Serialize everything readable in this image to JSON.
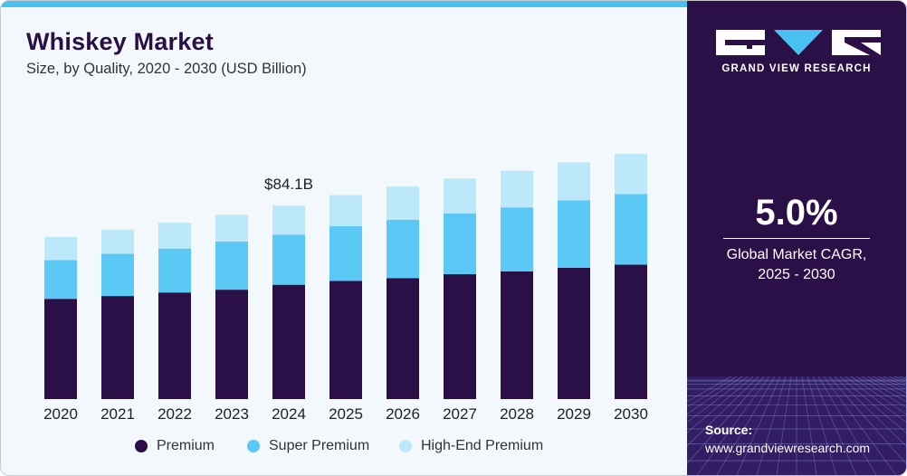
{
  "header": {
    "title": "Whiskey Market",
    "subtitle": "Size, by Quality, 2020 - 2030 (USD Billion)"
  },
  "chart_data": {
    "type": "bar",
    "stacked": true,
    "categories": [
      "2020",
      "2021",
      "2022",
      "2023",
      "2024",
      "2025",
      "2026",
      "2027",
      "2028",
      "2029",
      "2030"
    ],
    "series": [
      {
        "name": "Premium",
        "color": "#2b0f47",
        "values": [
          28.5,
          29.3,
          30.3,
          31.1,
          32.5,
          33.6,
          34.4,
          35.5,
          36.3,
          37.3,
          38.2
        ]
      },
      {
        "name": "Super Premium",
        "color": "#5bc8f5",
        "values": [
          11.0,
          12.0,
          12.5,
          13.7,
          14.2,
          15.6,
          16.6,
          17.3,
          18.2,
          19.2,
          20.1
        ]
      },
      {
        "name": "High-End Premium",
        "color": "#bde8fa",
        "values": [
          6.6,
          6.9,
          7.3,
          7.6,
          8.3,
          8.8,
          9.4,
          9.9,
          10.4,
          10.8,
          11.4
        ]
      }
    ],
    "annotations": [
      {
        "category": "2024",
        "label": "$84.1B"
      }
    ],
    "ylim": [
      0,
      80
    ],
    "legend": "bottom-center",
    "grid": false,
    "xlabel": "",
    "ylabel": ""
  },
  "sidebar": {
    "brand": "GRAND VIEW RESEARCH",
    "cagr_value": "5.0%",
    "cagr_label": "Global Market CAGR,\n2025 - 2030",
    "source_label": "Source:",
    "source_url": "www.grandviewresearch.com",
    "colors": {
      "background": "#2b0f47",
      "accent": "#49c2f1"
    }
  }
}
